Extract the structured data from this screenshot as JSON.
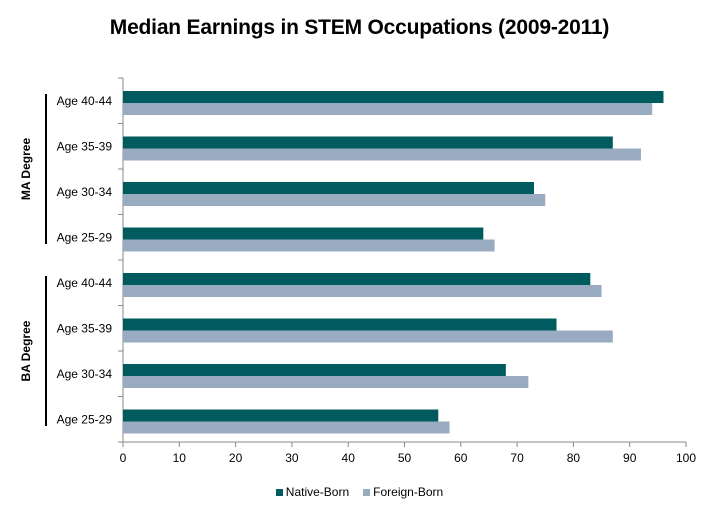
{
  "chart_data": {
    "type": "bar",
    "orientation": "horizontal",
    "title": "Median Earnings in STEM Occupations (2009-2011)",
    "xlabel": "",
    "ylabel": "",
    "xlim": [
      0,
      100
    ],
    "xticks": [
      "0",
      "10",
      "20",
      "30",
      "40",
      "50",
      "60",
      "70",
      "80",
      "90",
      "100"
    ],
    "groups": [
      {
        "label": "MA Degree",
        "categories": [
          "Age 40-44",
          "Age 35-39",
          "Age 30-34",
          "Age 25-29"
        ]
      },
      {
        "label": "BA Degree",
        "categories": [
          "Age 40-44",
          "Age 35-39",
          "Age 30-34",
          "Age 25-29"
        ]
      }
    ],
    "series": [
      {
        "name": "Native-Born",
        "color": "#005b5e",
        "values": [
          96,
          87,
          73,
          64,
          83,
          77,
          68,
          56
        ]
      },
      {
        "name": "Foreign-Born",
        "color": "#98abc1",
        "values": [
          94,
          92,
          75,
          66,
          85,
          87,
          72,
          58
        ]
      }
    ],
    "legend_position": "bottom"
  }
}
